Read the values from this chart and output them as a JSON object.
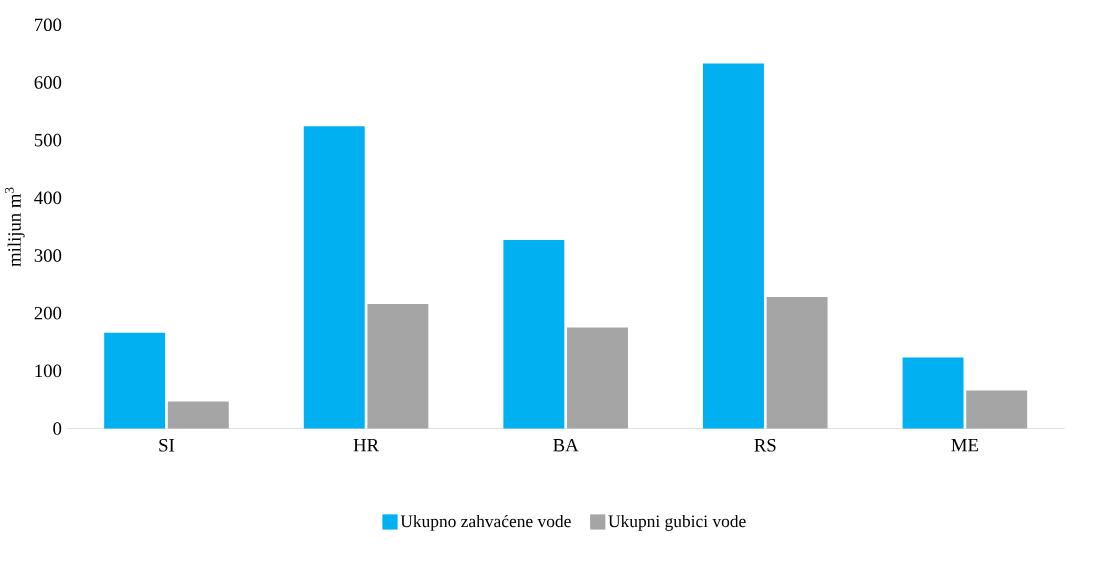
{
  "chart_data": {
    "type": "bar",
    "ylabel": "milijun m$^{3}$",
    "categories": [
      "SI",
      "HR",
      "BA",
      "RS",
      "ME"
    ],
    "series": [
      {
        "name": "Ukupno zahvaćene vode",
        "color": "#00b0f0",
        "values": [
          166,
          524,
          327,
          633,
          123
        ]
      },
      {
        "name": "Ukupni gubici vode",
        "color": "#a5a5a5",
        "values": [
          47,
          216,
          175,
          228,
          66
        ]
      }
    ],
    "ylim": [
      0,
      700
    ],
    "yticks": [
      0,
      100,
      200,
      300,
      400,
      500,
      600,
      700
    ],
    "legend": "bottom"
  }
}
